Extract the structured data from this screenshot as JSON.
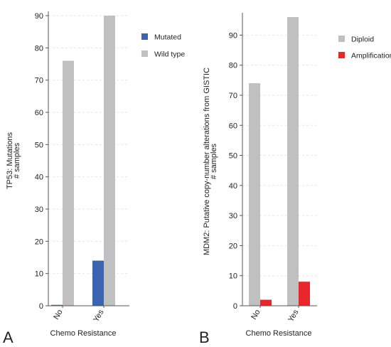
{
  "chart_data": [
    {
      "type": "bar",
      "panel_label": "A",
      "categories": [
        "No",
        "Yes"
      ],
      "series": [
        {
          "name": "Mutated",
          "color": "#3a63b1",
          "values": [
            0,
            14
          ]
        },
        {
          "name": "Wild type",
          "color": "#c0c0c0",
          "values": [
            76,
            90
          ]
        }
      ],
      "xlabel": "Chemo Resistance",
      "ylabel_lines": [
        "TP53: Mutations",
        "# samples"
      ],
      "ylim": [
        0,
        90
      ],
      "yticks": [
        0,
        10,
        20,
        30,
        40,
        50,
        60,
        70,
        80,
        90
      ],
      "grid": true,
      "legend_position": "right"
    },
    {
      "type": "bar",
      "panel_label": "B",
      "categories": [
        "No",
        "Yes"
      ],
      "series": [
        {
          "name": "Diploid",
          "color": "#c0c0c0",
          "values": [
            74,
            96
          ]
        },
        {
          "name": "Amplification",
          "color": "#e8262c",
          "values": [
            2,
            8
          ]
        }
      ],
      "xlabel": "Chemo Resistance",
      "ylabel_lines": [
        "MDM2: Putative copy-number alterations from GISTIC",
        "# samples"
      ],
      "ylim": [
        0,
        96
      ],
      "yticks": [
        0,
        10,
        20,
        30,
        40,
        50,
        60,
        70,
        80,
        90
      ],
      "grid": true,
      "legend_position": "right"
    }
  ]
}
